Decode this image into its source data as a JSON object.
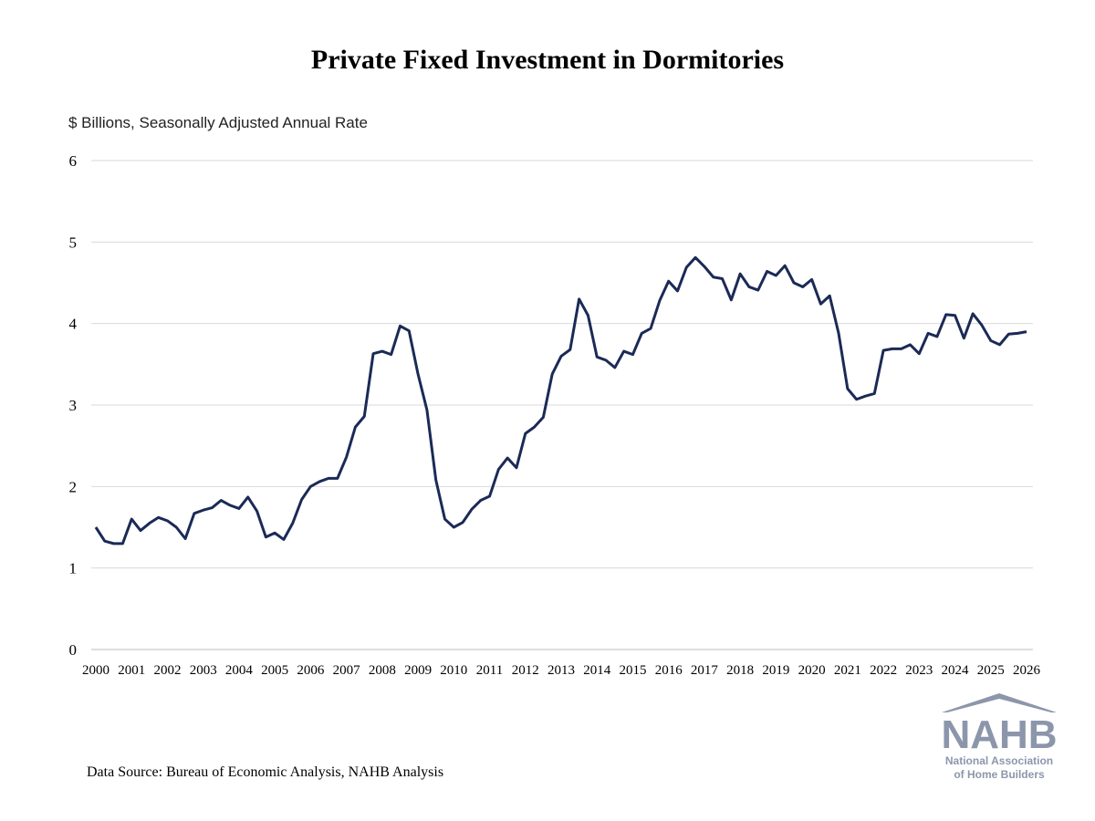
{
  "chart_data": {
    "type": "line",
    "title": "Private Fixed Investment in Dormitories",
    "y_label": "$ Billions, Seasonally Adjusted Annual Rate",
    "source": "Data Source: Bureau of Economic Analysis, NAHB Analysis",
    "categories": [
      "2000",
      null,
      null,
      null,
      "2001",
      null,
      null,
      null,
      "2002",
      null,
      null,
      null,
      "2003",
      null,
      null,
      null,
      "2004",
      null,
      null,
      null,
      "2005",
      null,
      null,
      null,
      "2006",
      null,
      null,
      null,
      "2007",
      null,
      null,
      null,
      "2008",
      null,
      null,
      null,
      "2009",
      null,
      null,
      null,
      "2010",
      null,
      null,
      null,
      "2011",
      null,
      null,
      null,
      "2012",
      null,
      null,
      null,
      "2013",
      null,
      null,
      null,
      "2014",
      null,
      null,
      null,
      "2015",
      null,
      null,
      null,
      "2016",
      null,
      null,
      null,
      "2017",
      null,
      null,
      null,
      "2018",
      null,
      null,
      null,
      "2019",
      null,
      null,
      null,
      "2020",
      null,
      null,
      null,
      "2021",
      null,
      null,
      null,
      "2022",
      null,
      null,
      null,
      "2023",
      null,
      null,
      null,
      "2024",
      null,
      null,
      null,
      "2025",
      null,
      null,
      null,
      "2026"
    ],
    "values": [
      1.5,
      1.33,
      1.3,
      1.3,
      1.6,
      1.46,
      1.55,
      1.62,
      1.58,
      1.5,
      1.36,
      1.67,
      1.71,
      1.74,
      1.83,
      1.77,
      1.73,
      1.87,
      1.7,
      1.38,
      1.43,
      1.35,
      1.55,
      1.84,
      2.0,
      2.06,
      2.1,
      2.1,
      2.36,
      2.73,
      2.86,
      3.63,
      3.66,
      3.62,
      3.97,
      3.91,
      3.38,
      2.94,
      2.08,
      1.6,
      1.5,
      1.56,
      1.72,
      1.83,
      1.88,
      2.21,
      2.35,
      2.23,
      2.65,
      2.73,
      2.85,
      3.38,
      3.6,
      3.68,
      4.3,
      4.1,
      3.59,
      3.55,
      3.46,
      3.66,
      3.62,
      3.88,
      3.94,
      4.28,
      4.52,
      4.4,
      4.69,
      4.81,
      4.7,
      4.57,
      4.55,
      4.29,
      4.61,
      4.45,
      4.41,
      4.64,
      4.59,
      4.71,
      4.5,
      4.45,
      4.54,
      4.24,
      4.34,
      3.88,
      3.2,
      3.07,
      3.11,
      3.14,
      3.67,
      3.69,
      3.69,
      3.74,
      3.63,
      3.88,
      3.84,
      4.11,
      4.1,
      3.82,
      4.12,
      3.98,
      3.79,
      3.74,
      3.87,
      3.88,
      3.9
    ],
    "color": "#1b2a56",
    "ylim": [
      0,
      6
    ],
    "yticks": [
      0,
      1,
      2,
      3,
      4,
      5,
      6
    ],
    "grid": true
  },
  "logo": {
    "name": "NAHB",
    "line1": "National Association",
    "line2": "of Home Builders"
  }
}
